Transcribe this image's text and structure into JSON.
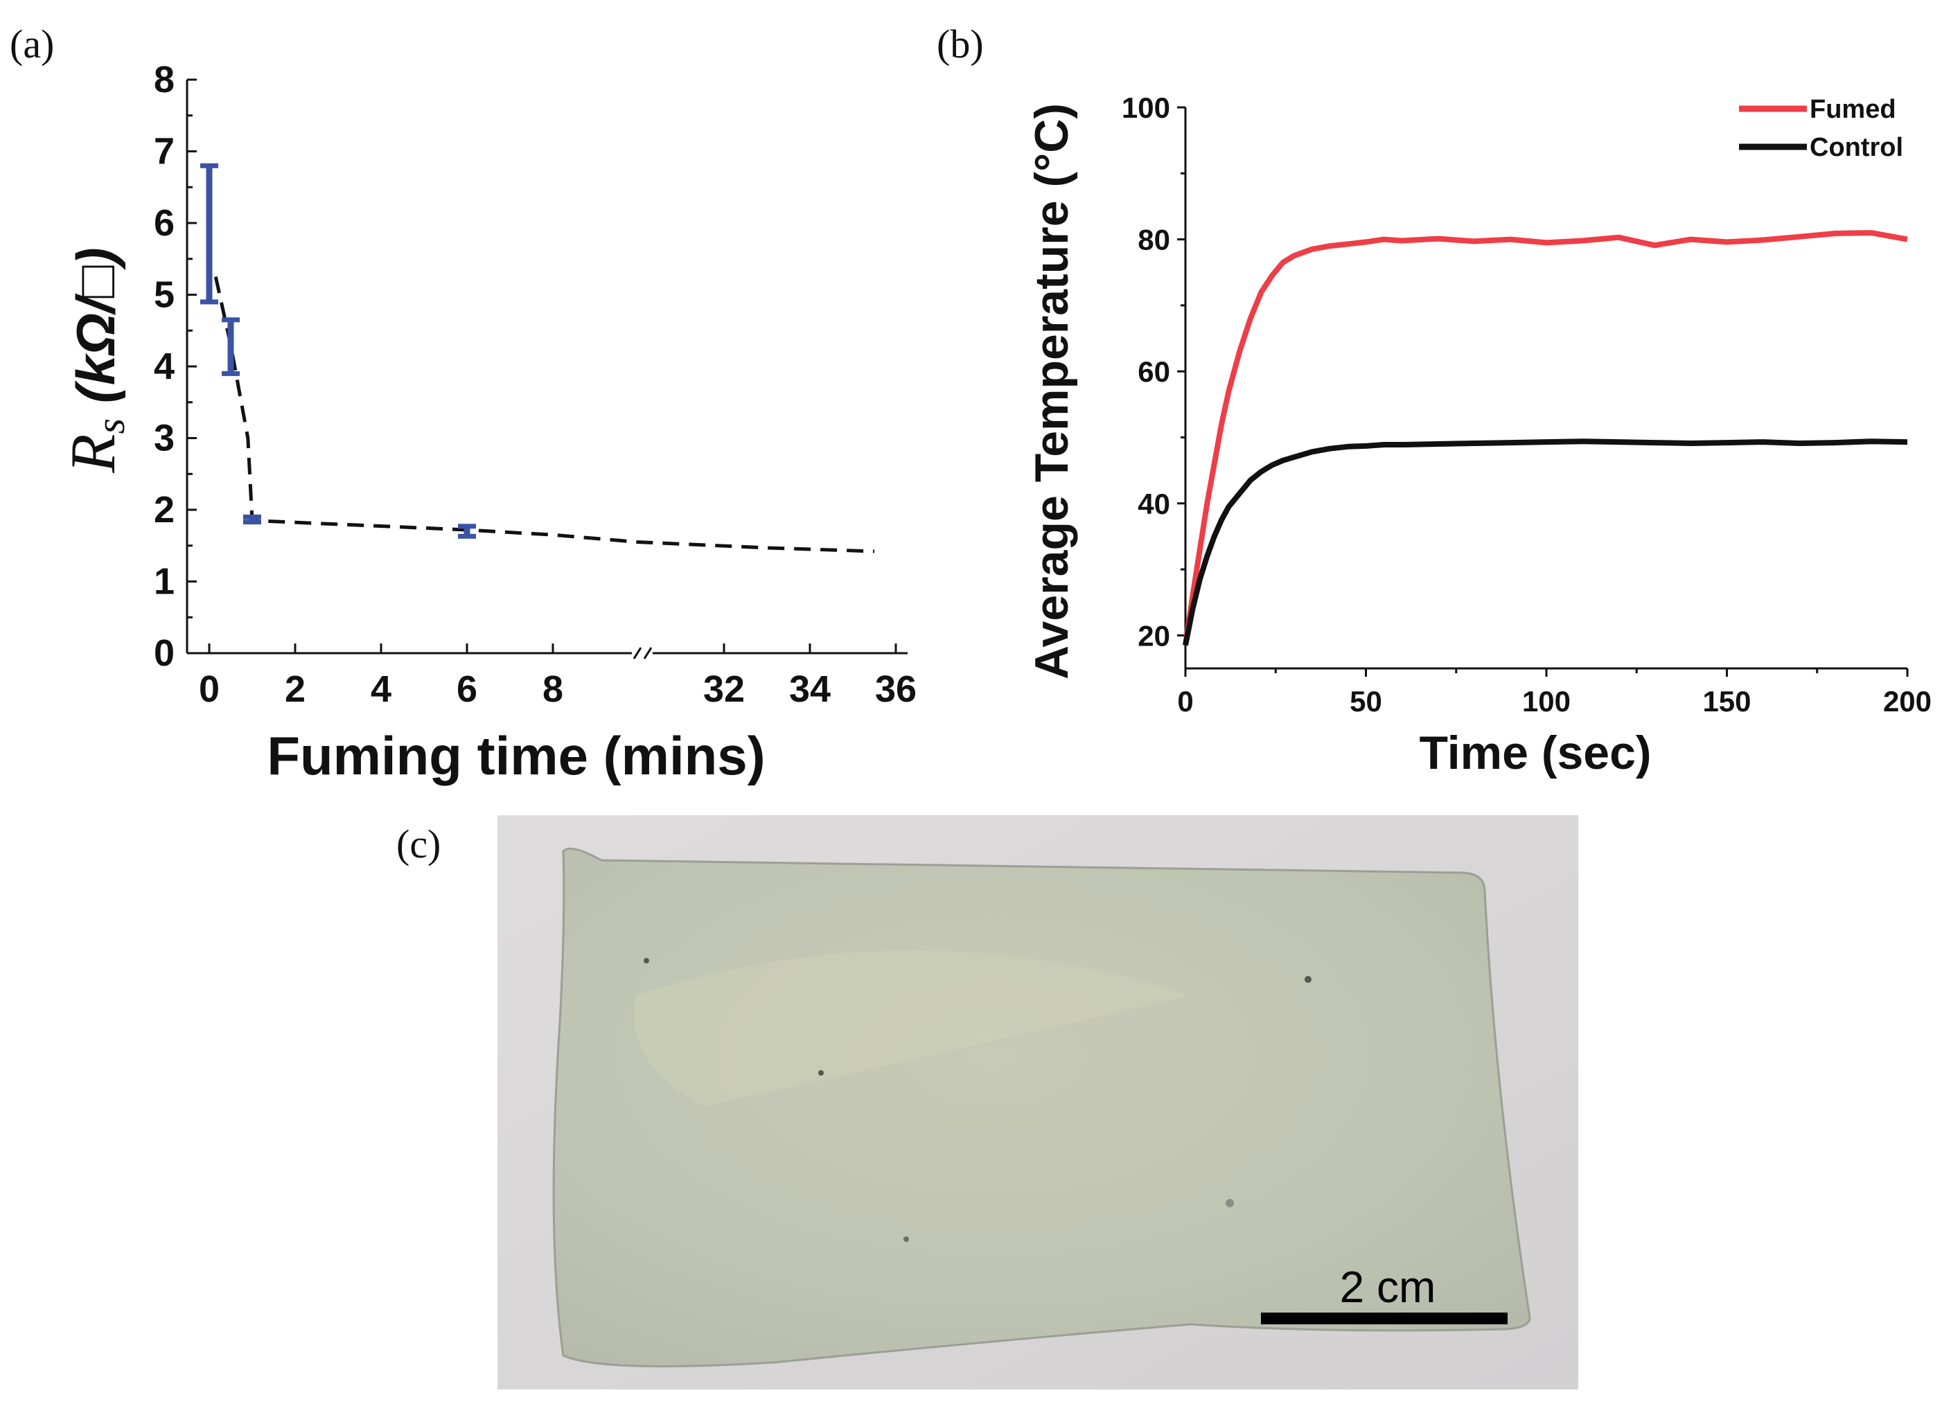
{
  "panels": {
    "a": {
      "tag": "(a)"
    },
    "b": {
      "tag": "(b)"
    },
    "c": {
      "tag": "(c)"
    }
  },
  "chart_data": [
    {
      "type": "scatter",
      "panel": "a",
      "xlabel": "Fuming time (mins)",
      "ylabel_symbol": "R",
      "ylabel_subscript": "s",
      "ylabel_unit": " (kΩ/□)",
      "ylim": [
        0,
        8
      ],
      "yticks": [
        "0",
        "1",
        "2",
        "3",
        "4",
        "5",
        "6",
        "7",
        "8"
      ],
      "xticks": [
        "0",
        "2",
        "4",
        "6",
        "8",
        "32",
        "34",
        "36"
      ],
      "axis_break": "//",
      "x_segments": [
        [
          0,
          10
        ],
        [
          30,
          36
        ]
      ],
      "series": [
        {
          "marker_color": "#3a53a4",
          "points": [
            {
              "x": 0,
              "y_low": 4.9,
              "y_high": 6.8
            },
            {
              "x": 0.5,
              "y_low": 3.9,
              "y_high": 4.65
            },
            {
              "x": 1,
              "y_low": 1.83,
              "y_high": 1.9
            },
            {
              "x": 6,
              "y_low": 1.63,
              "y_high": 1.77
            }
          ]
        }
      ],
      "trend": {
        "style": "dashed",
        "color": "#111111",
        "points": [
          [
            0.15,
            5.25
          ],
          [
            0.5,
            4.3
          ],
          [
            0.9,
            3.0
          ],
          [
            1.0,
            1.85
          ],
          [
            6,
            1.72
          ],
          [
            8,
            1.65
          ],
          [
            30,
            1.55
          ],
          [
            33,
            1.47
          ],
          [
            35.5,
            1.42
          ]
        ]
      },
      "grid": false
    },
    {
      "type": "line",
      "panel": "b",
      "xlabel": "Time (sec)",
      "ylabel": "Average Temperature (°C)",
      "xlim": [
        0,
        200
      ],
      "ylim": [
        15,
        100
      ],
      "xticks": [
        "0",
        "50",
        "100",
        "150",
        "200"
      ],
      "yticks": [
        "20",
        "40",
        "60",
        "80",
        "100"
      ],
      "legend_position": "top-right",
      "series": [
        {
          "name": "Fumed",
          "color": "#ee3e47",
          "x": [
            0,
            2,
            4,
            6,
            8,
            10,
            12,
            15,
            18,
            21,
            24,
            27,
            30,
            35,
            40,
            45,
            50,
            55,
            60,
            70,
            80,
            90,
            100,
            110,
            120,
            130,
            140,
            150,
            160,
            170,
            180,
            190,
            200
          ],
          "y": [
            18.5,
            26,
            33,
            40,
            46,
            52,
            57,
            63,
            68,
            72,
            74.5,
            76.5,
            77.5,
            78.5,
            79,
            79.3,
            79.6,
            80,
            79.8,
            80.1,
            79.7,
            80,
            79.5,
            79.8,
            80.3,
            79.1,
            80,
            79.6,
            79.9,
            80.4,
            80.9,
            81,
            80
          ]
        },
        {
          "name": "Control",
          "color": "#111111",
          "x": [
            0,
            2,
            4,
            6,
            8,
            10,
            12,
            15,
            18,
            21,
            24,
            27,
            30,
            35,
            40,
            45,
            50,
            55,
            60,
            70,
            80,
            90,
            100,
            110,
            120,
            130,
            140,
            150,
            160,
            170,
            180,
            190,
            200
          ],
          "y": [
            18.5,
            24,
            28.5,
            32,
            35,
            37.5,
            39.5,
            41.5,
            43.5,
            44.8,
            45.8,
            46.5,
            47,
            47.8,
            48.3,
            48.6,
            48.7,
            48.9,
            48.9,
            49,
            49.1,
            49.2,
            49.3,
            49.4,
            49.3,
            49.2,
            49.1,
            49.2,
            49.3,
            49.1,
            49.2,
            49.4,
            49.3
          ]
        }
      ],
      "grid": false
    }
  ],
  "photo": {
    "scale_bar_label": "2 cm",
    "film_color": "#c0c5b4",
    "background_color": "#d9d7d7"
  }
}
